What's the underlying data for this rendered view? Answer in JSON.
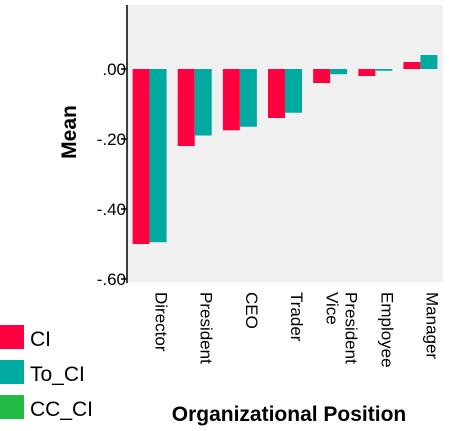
{
  "chart_data": {
    "type": "bar",
    "xlabel": "Organizational Position",
    "ylabel": "Mean",
    "ylim": [
      -0.6,
      0.06
    ],
    "yticks": [
      ".00",
      "-.20",
      "-.40",
      "-.60"
    ],
    "ytick_values": [
      0.0,
      -0.2,
      -0.4,
      -0.6
    ],
    "categories": [
      "Director",
      "President",
      "CEO",
      "Trader",
      "Vice President",
      "Employee",
      "Manager"
    ],
    "category_lines": [
      [
        "Director"
      ],
      [
        "President"
      ],
      [
        "CEO"
      ],
      [
        "Trader"
      ],
      [
        "Vice",
        "President"
      ],
      [
        "Employee"
      ],
      [
        "Manager"
      ]
    ],
    "series": [
      {
        "name": "CI",
        "color": "#ff0040",
        "values": [
          -0.5,
          -0.22,
          -0.175,
          -0.14,
          -0.04,
          -0.02,
          0.02
        ]
      },
      {
        "name": "To_CI",
        "color": "#00aaa0",
        "values": [
          -0.495,
          -0.19,
          -0.165,
          -0.125,
          -0.015,
          -0.005,
          0.04
        ]
      },
      {
        "name": "CC_CI",
        "color": "#22bb44",
        "values": [
          0,
          0,
          0,
          0,
          0,
          0,
          0
        ]
      }
    ],
    "legend_position": "bottom-left",
    "grid": false,
    "background": "#f0f0f0"
  }
}
